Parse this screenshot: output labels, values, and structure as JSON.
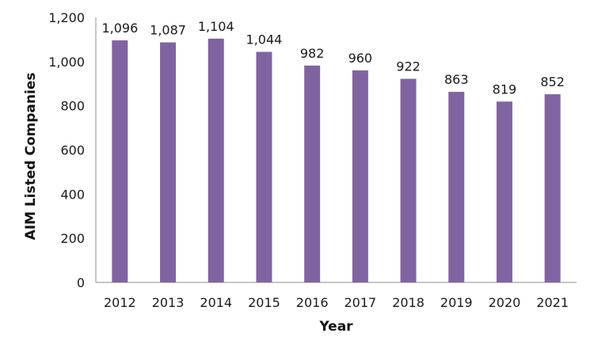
{
  "chart_data": {
    "type": "bar",
    "title": "",
    "xlabel": "Year",
    "ylabel": "AIM Listed Companies",
    "categories": [
      "2012",
      "2013",
      "2014",
      "2015",
      "2016",
      "2017",
      "2018",
      "2019",
      "2020",
      "2021"
    ],
    "values": [
      1096,
      1087,
      1104,
      1044,
      982,
      960,
      922,
      863,
      819,
      852
    ],
    "value_labels": [
      "1,096",
      "1,087",
      "1,104",
      "1,044",
      "982",
      "960",
      "922",
      "863",
      "819",
      "852"
    ],
    "ylim": [
      0,
      1200
    ],
    "y_ticks": [
      0,
      200,
      400,
      600,
      800,
      1000,
      1200
    ],
    "y_tick_labels": [
      "0",
      "200",
      "400",
      "600",
      "800",
      "1,000",
      "1,200"
    ],
    "grid": false,
    "legend": "none",
    "bar_color": "#8064A2"
  }
}
